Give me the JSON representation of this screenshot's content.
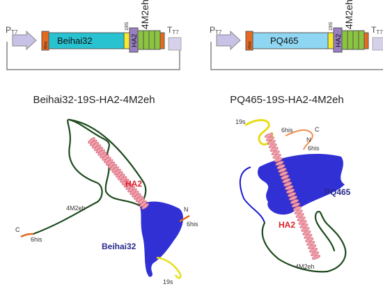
{
  "constructs": [
    {
      "promoter": "P",
      "promoter_sub": "T7",
      "tag": "6his",
      "protein": "Beihai32",
      "linker": "19S",
      "ha2": "HA2",
      "m2e": "4M2eh",
      "terminator": "T",
      "terminator_sub": "T7"
    },
    {
      "promoter": "P",
      "promoter_sub": "T7",
      "tag": "6his",
      "protein": "PQ465",
      "linker": "19S",
      "ha2": "HA2",
      "m2e": "4M2eh",
      "terminator": "T",
      "terminator_sub": "T7"
    }
  ],
  "structures": [
    {
      "title": "Beihai32-19S-HA2-4M2eh",
      "labels": [
        "HA2",
        "4M2eh",
        "C",
        "6his",
        "N",
        "6his",
        "Beihai32",
        "19s"
      ]
    },
    {
      "title": "PQ465-19S-HA2-4M2eh",
      "labels": [
        "19s",
        "6his",
        "C",
        "N",
        "6his",
        "PQ465",
        "HA2",
        "4M2eh"
      ]
    }
  ]
}
